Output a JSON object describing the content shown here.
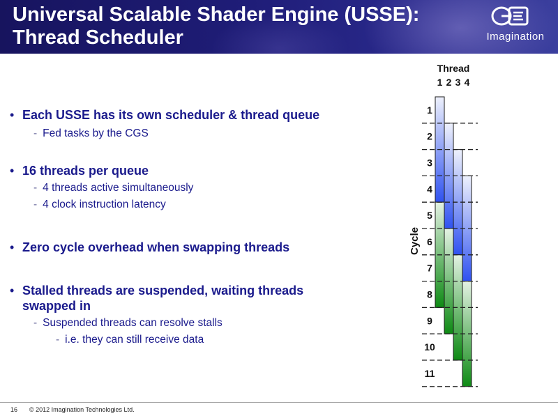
{
  "slide": {
    "title_line1": "Universal Scalable Shader Engine (USSE):",
    "title_line2": "Thread Scheduler",
    "logo_text": "Imagination"
  },
  "bullets": [
    {
      "text": "Each USSE has its own scheduler & thread queue",
      "subs": [
        {
          "text": "Fed tasks by the CGS",
          "level": 1
        }
      ]
    },
    {
      "text": "16 threads per queue",
      "subs": [
        {
          "text": "4 threads active simultaneously",
          "level": 1
        },
        {
          "text": "4 clock instruction latency",
          "level": 1
        }
      ]
    },
    {
      "text": "Zero cycle overhead when swapping threads",
      "subs": []
    },
    {
      "text": "Stalled threads are suspended, waiting threads swapped in",
      "subs": [
        {
          "text": "Suspended threads can resolve stalls",
          "level": 1
        },
        {
          "text": "i.e. they can still receive data",
          "level": 2
        }
      ]
    }
  ],
  "diagram": {
    "thread_header": "Thread",
    "thread_numbers": [
      "1",
      "2",
      "3",
      "4"
    ],
    "cycle_label": "Cycle",
    "cycles": [
      "1",
      "2",
      "3",
      "4",
      "5",
      "6",
      "7",
      "8",
      "9",
      "10",
      "11"
    ],
    "threads": [
      {
        "start_cycle": 1,
        "blue_cycles": 4,
        "green_cycles": 4
      },
      {
        "start_cycle": 2,
        "blue_cycles": 4,
        "green_cycles": 4
      },
      {
        "start_cycle": 3,
        "blue_cycles": 4,
        "green_cycles": 4
      },
      {
        "start_cycle": 4,
        "blue_cycles": 4,
        "green_cycles": 4
      }
    ],
    "colors": {
      "blue": "#3355ee",
      "green": "#118811",
      "dash": "#222222"
    }
  },
  "footer": {
    "page_number": "16",
    "copyright": "© 2012 Imagination Technologies Ltd."
  }
}
